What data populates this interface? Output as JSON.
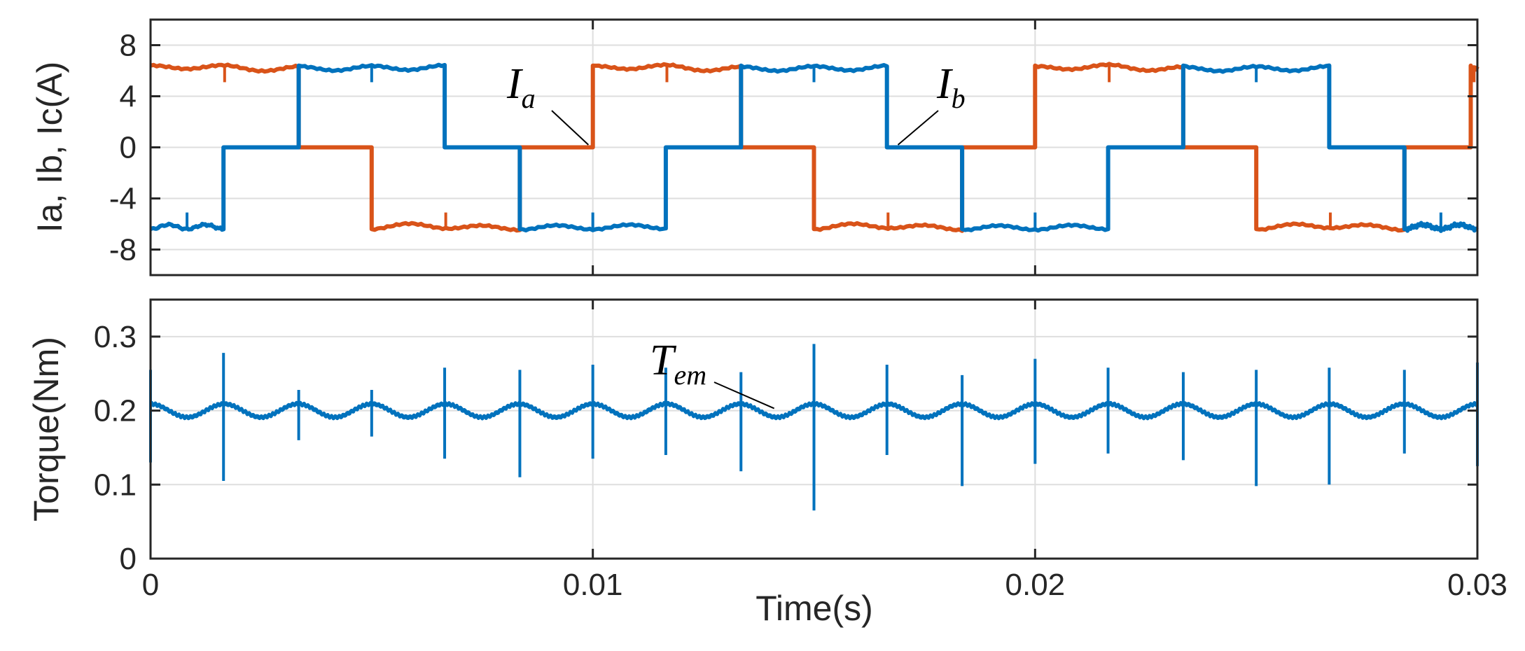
{
  "chart_data": [
    {
      "type": "line",
      "id": "currents",
      "ylabel": "Ia, Ib, Ic(A)",
      "xlim": [
        0,
        0.03
      ],
      "ylim": [
        -10,
        10
      ],
      "yticks": [
        -8,
        -4,
        0,
        4,
        8
      ],
      "ytick_labels": [
        "-8",
        "-4",
        "0",
        "4",
        "8"
      ],
      "grid": true,
      "series": [
        {
          "name": "Ia",
          "color": "#D95319",
          "segments": [
            {
              "x0": 0.0,
              "x1": 0.00335,
              "level": 6.4
            },
            {
              "x0": 0.00335,
              "x1": 0.005,
              "level": 0
            },
            {
              "x0": 0.005,
              "x1": 0.00835,
              "level": -6.4
            },
            {
              "x0": 0.00835,
              "x1": 0.01,
              "level": 0
            },
            {
              "x0": 0.01,
              "x1": 0.01335,
              "level": 6.4
            },
            {
              "x0": 0.01335,
              "x1": 0.015,
              "level": 0
            },
            {
              "x0": 0.015,
              "x1": 0.01835,
              "level": -6.4
            },
            {
              "x0": 0.01835,
              "x1": 0.02,
              "level": 0
            },
            {
              "x0": 0.02,
              "x1": 0.02335,
              "level": 6.4
            },
            {
              "x0": 0.02335,
              "x1": 0.025,
              "level": 0
            },
            {
              "x0": 0.025,
              "x1": 0.02835,
              "level": -6.4
            },
            {
              "x0": 0.02835,
              "x1": 0.02985,
              "level": 0
            },
            {
              "x0": 0.02985,
              "x1": 0.03,
              "level": 6.4
            }
          ]
        },
        {
          "name": "Ib",
          "color": "#0072BD",
          "segments": [
            {
              "x0": 0.0,
              "x1": 0.00165,
              "level": -6.4
            },
            {
              "x0": 0.00165,
              "x1": 0.00335,
              "level": 0
            },
            {
              "x0": 0.00335,
              "x1": 0.00665,
              "level": 6.4
            },
            {
              "x0": 0.00665,
              "x1": 0.00835,
              "level": 0
            },
            {
              "x0": 0.00835,
              "x1": 0.01165,
              "level": -6.4
            },
            {
              "x0": 0.01165,
              "x1": 0.01335,
              "level": 0
            },
            {
              "x0": 0.01335,
              "x1": 0.01665,
              "level": 6.4
            },
            {
              "x0": 0.01665,
              "x1": 0.01835,
              "level": 0
            },
            {
              "x0": 0.01835,
              "x1": 0.02165,
              "level": -6.4
            },
            {
              "x0": 0.02165,
              "x1": 0.02335,
              "level": 0
            },
            {
              "x0": 0.02335,
              "x1": 0.02665,
              "level": 6.4
            },
            {
              "x0": 0.02665,
              "x1": 0.02835,
              "level": 0
            },
            {
              "x0": 0.02835,
              "x1": 0.03,
              "level": -6.4
            }
          ]
        }
      ],
      "annotations": [
        {
          "main": "I",
          "sub": "a",
          "at_x": 0.0099,
          "at_y": 0.2
        },
        {
          "main": "I",
          "sub": "b",
          "at_x": 0.0169,
          "at_y": 0.2
        }
      ]
    },
    {
      "type": "line",
      "id": "torque",
      "ylabel": "Torque(Nm)",
      "xlabel": "Time(s)",
      "xlim": [
        0,
        0.03
      ],
      "ylim": [
        0,
        0.35
      ],
      "xticks": [
        0,
        0.01,
        0.02,
        0.03
      ],
      "xtick_labels": [
        "0",
        "0.01",
        "0.02",
        "0.03"
      ],
      "yticks": [
        0,
        0.1,
        0.2,
        0.3
      ],
      "ytick_labels": [
        "0",
        "0.1",
        "0.2",
        "0.3"
      ],
      "grid": true,
      "series": [
        {
          "name": "Tem",
          "color": "#0072BD",
          "mean": 0.2,
          "ripple": 0.009,
          "spike_times": [
            0.0,
            0.00165,
            0.00335,
            0.005,
            0.00665,
            0.00835,
            0.01,
            0.01165,
            0.01335,
            0.015,
            0.01665,
            0.01835,
            0.02,
            0.02165,
            0.02335,
            0.025,
            0.02665,
            0.02835,
            0.03
          ],
          "spike_max": [
            0.255,
            0.278,
            0.228,
            0.228,
            0.258,
            0.255,
            0.262,
            0.258,
            0.252,
            0.29,
            0.262,
            0.248,
            0.27,
            0.258,
            0.252,
            0.255,
            0.258,
            0.255,
            0.265
          ],
          "spike_min": [
            0.13,
            0.105,
            0.16,
            0.165,
            0.135,
            0.11,
            0.135,
            0.14,
            0.118,
            0.065,
            0.14,
            0.098,
            0.128,
            0.142,
            0.133,
            0.098,
            0.1,
            0.142,
            0.125
          ]
        }
      ],
      "annotations": [
        {
          "main": "T",
          "sub": "em",
          "at_x": 0.0141,
          "at_y": 0.203
        }
      ]
    }
  ]
}
